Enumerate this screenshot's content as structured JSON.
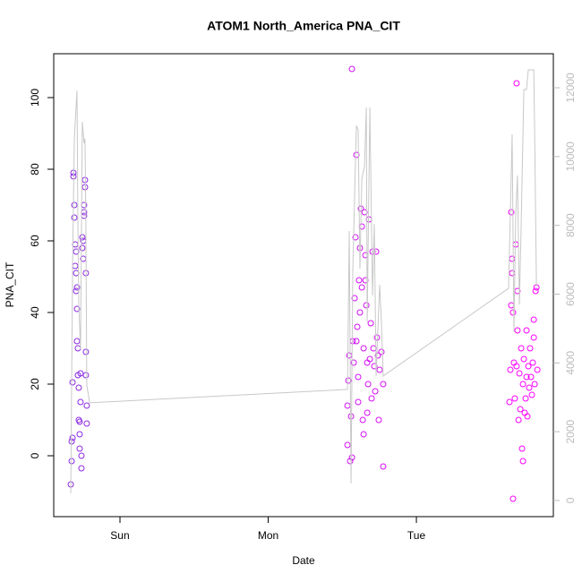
{
  "chart_data": {
    "type": "scatter",
    "title": "ATOM1 North_America PNA_CIT",
    "x_label": "Date",
    "y_label": "PNA_CIT",
    "xlim": [
      -0.447,
      2.924
    ],
    "xticks": [
      {
        "value": 0,
        "label": "Sun"
      },
      {
        "value": 1,
        "label": "Mon"
      },
      {
        "value": 2,
        "label": "Tue"
      }
    ],
    "ylim": [
      -17,
      112.25
    ],
    "yticks": [
      0,
      20,
      40,
      60,
      80,
      100
    ],
    "y2lim": [
      -470,
      12990
    ],
    "y2ticks": [
      0,
      2000,
      4000,
      6000,
      8000,
      10000,
      12000
    ],
    "y2tick_color": "#bbbbbb",
    "series": [
      {
        "type": "scatter",
        "color_gradient": [
          "#8a2be2",
          "#ff00ff"
        ],
        "x": [
          -0.332,
          -0.326,
          -0.326,
          -0.32,
          -0.32,
          -0.314,
          -0.314,
          -0.308,
          -0.308,
          -0.302,
          -0.302,
          -0.296,
          -0.296,
          -0.296,
          -0.29,
          -0.29,
          -0.29,
          -0.284,
          -0.284,
          -0.278,
          -0.278,
          -0.272,
          -0.272,
          -0.272,
          -0.266,
          -0.266,
          -0.26,
          -0.26,
          -0.254,
          -0.254,
          -0.248,
          -0.248,
          -0.242,
          -0.242,
          -0.242,
          -0.236,
          -0.236,
          -0.23,
          -0.23,
          -0.23,
          -0.224,
          -0.224,
          1.535,
          1.535,
          1.541,
          1.547,
          1.553,
          1.559,
          1.565,
          1.565,
          1.571,
          1.577,
          1.583,
          1.589,
          1.595,
          1.595,
          1.601,
          1.607,
          1.607,
          1.613,
          1.619,
          1.619,
          1.625,
          1.632,
          1.632,
          1.638,
          1.644,
          1.644,
          1.65,
          1.656,
          1.656,
          1.662,
          1.668,
          1.668,
          1.674,
          1.68,
          1.686,
          1.692,
          1.698,
          1.704,
          1.71,
          1.716,
          1.722,
          1.728,
          1.734,
          1.74,
          1.746,
          1.752,
          1.764,
          1.776,
          1.776,
          2.628,
          2.634,
          2.64,
          2.64,
          2.646,
          2.646,
          2.652,
          2.652,
          2.658,
          2.664,
          2.67,
          2.676,
          2.676,
          2.682,
          2.682,
          2.689,
          2.695,
          2.701,
          2.707,
          2.713,
          2.719,
          2.719,
          2.725,
          2.731,
          2.737,
          2.743,
          2.743,
          2.749,
          2.755,
          2.761,
          2.767,
          2.773,
          2.779,
          2.785,
          2.792,
          2.792,
          2.798,
          2.804,
          2.81,
          2.816
        ],
        "values": [
          -8,
          -1.5,
          4,
          5,
          20.5,
          79,
          78,
          66.5,
          70,
          59,
          53,
          57,
          51,
          46,
          47,
          41,
          32,
          30,
          22.5,
          19,
          10,
          9.5,
          6,
          2,
          23,
          15,
          -3.5,
          0,
          58,
          61,
          55,
          60,
          67,
          68,
          70,
          77,
          75,
          51,
          29,
          22.5,
          14,
          9,
          3,
          14,
          21,
          28,
          -1.5,
          11,
          108,
          -0.5,
          32,
          26,
          44,
          61,
          84,
          32,
          36,
          22,
          15,
          49,
          58,
          40,
          69,
          64,
          47,
          10,
          30,
          6,
          68,
          56,
          49,
          42,
          26,
          12,
          20,
          66,
          27,
          37,
          16,
          57,
          30,
          25,
          18,
          57,
          33,
          28,
          10,
          24,
          29,
          -3,
          20,
          15,
          24,
          68,
          42,
          55,
          51,
          -12,
          40,
          26,
          16,
          59,
          104,
          25,
          35,
          46,
          10,
          23,
          13,
          30,
          2,
          -1.5,
          20,
          27,
          12,
          16,
          22,
          35,
          11,
          25,
          19,
          30,
          22,
          17,
          26,
          33,
          38,
          20,
          46,
          47,
          24
        ]
      },
      {
        "type": "line",
        "axis": "y2",
        "color": "#c8c8c8",
        "x": [
          -0.332,
          -0.32,
          -0.308,
          -0.29,
          -0.284,
          -0.278,
          -0.266,
          -0.254,
          -0.242,
          -0.236,
          -0.23,
          -0.224,
          -0.205,
          1.535,
          1.547,
          1.559,
          1.571,
          1.595,
          1.607,
          1.619,
          1.632,
          1.65,
          1.662,
          1.668,
          1.686,
          1.704,
          1.716,
          1.728,
          1.752,
          1.764,
          1.776,
          2.622,
          2.646,
          2.658,
          2.67,
          2.682,
          2.695,
          2.707,
          2.725,
          2.743,
          2.755,
          2.792,
          2.798,
          2.81
        ],
        "values": [
          208,
          6740,
          10515,
          11920,
          8040,
          5700,
          4400,
          11010,
          10385,
          10515,
          8040,
          3360,
          2840,
          3230,
          7835,
          495,
          6740,
          10900,
          10775,
          6740,
          9345,
          9735,
          11425,
          5180,
          11425,
          5960,
          8040,
          3620,
          6270,
          5180,
          3620,
          6170,
          10645,
          4920,
          8300,
          9450,
          5700,
          8040,
          11950,
          11950,
          12520,
          12520,
          10645,
          6220
        ]
      }
    ]
  }
}
